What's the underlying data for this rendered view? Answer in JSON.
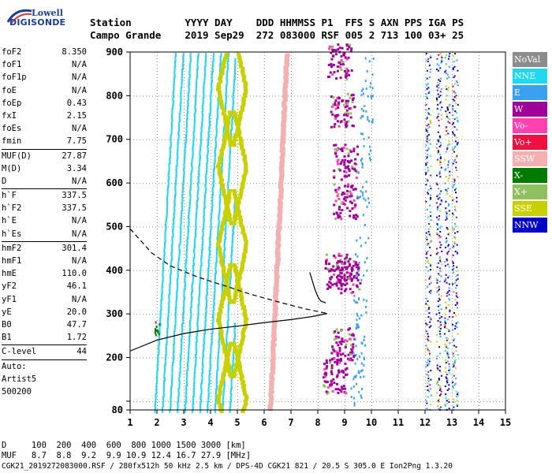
{
  "header": {
    "labels": "Station         YYYY DAY    DDD HHMMSS P1  FFS S AXN PPS IGA PS",
    "values": "Campo Grande    2019 Sep29  272 083000 RSF 005 2 713 100 03+ 25"
  },
  "logo": {
    "line1": "Lowell",
    "line2": "DIGISONDE"
  },
  "params": [
    {
      "name": "foF2",
      "value": "8.350"
    },
    {
      "name": "foF1",
      "value": "N/A"
    },
    {
      "name": "foF1p",
      "value": "N/A"
    },
    {
      "name": "foE",
      "value": "N/A"
    },
    {
      "name": "foEp",
      "value": "0.43"
    },
    {
      "name": "fxI",
      "value": "2.15"
    },
    {
      "name": "foEs",
      "value": "N/A"
    },
    {
      "name": "fmin",
      "value": "7.75"
    },
    {
      "name": "MUF(D)",
      "value": "27.87"
    },
    {
      "name": "M(D)",
      "value": "3.34"
    },
    {
      "name": "D",
      "value": "N/A"
    },
    {
      "name": "h`F",
      "value": "337.5"
    },
    {
      "name": "h`F2",
      "value": "337.5"
    },
    {
      "name": "h`E",
      "value": "N/A"
    },
    {
      "name": "h`Es",
      "value": "N/A"
    },
    {
      "name": "hmF2",
      "value": "301.4"
    },
    {
      "name": "hmF1",
      "value": "N/A"
    },
    {
      "name": "hmE",
      "value": "110.0"
    },
    {
      "name": "yF2",
      "value": "46.1"
    },
    {
      "name": "yF1",
      "value": "N/A"
    },
    {
      "name": "yE",
      "value": "20.0"
    },
    {
      "name": "B0",
      "value": "47.7"
    },
    {
      "name": "B1",
      "value": "1.72"
    },
    {
      "name": "C-level",
      "value": "44"
    }
  ],
  "auto": {
    "line1": "Auto:",
    "line2": "Artist5",
    "line3": "500200"
  },
  "legend": [
    {
      "label": "NoVal",
      "color": "#8c8c8c"
    },
    {
      "label": "NNE",
      "color": "#20d8f0"
    },
    {
      "label": "E",
      "color": "#3aa0f0"
    },
    {
      "label": "W",
      "color": "#a0009a"
    },
    {
      "label": "Vo-",
      "color": "#ff40b0"
    },
    {
      "label": "Vo+",
      "color": "#f01040"
    },
    {
      "label": "SSW",
      "color": "#f4b0b0"
    },
    {
      "label": "X-",
      "color": "#007a00"
    },
    {
      "label": "X+",
      "color": "#90c060"
    },
    {
      "label": "SSE",
      "color": "#c8d000"
    },
    {
      "label": "NNW",
      "color": "#0000c8"
    }
  ],
  "footer": {
    "d_row": "D     100  200  400  600  800 1000 1500 3000 [km]",
    "muf_row": "MUF   8.7  8.8  9.2  9.9 10.9 12.4 16.7 27.9 [MHz]",
    "info": "CGK21_2019272083000.RSF / 280fx512h 50 kHz 2.5 km / DPS-4D CGK21 821 / 20.5 S 305.0 E Ion2Png 1.3.20"
  },
  "chart_data": {
    "type": "scatter",
    "title": "",
    "xlabel": "",
    "ylabel": "",
    "xlim": [
      1,
      15
    ],
    "ylim": [
      80,
      900
    ],
    "x_ticks": [
      1,
      2,
      3,
      4,
      5,
      6,
      7,
      8,
      9,
      10,
      11,
      12,
      13,
      14,
      15
    ],
    "y_ticks": [
      80,
      100,
      200,
      300,
      400,
      500,
      600,
      700,
      800,
      900
    ],
    "grid": true,
    "profile_lower": [
      [
        1.0,
        215
      ],
      [
        2.0,
        240
      ],
      [
        3.0,
        255
      ],
      [
        4.0,
        265
      ],
      [
        5.0,
        272
      ],
      [
        6.0,
        280
      ],
      [
        7.0,
        287
      ],
      [
        7.8,
        294
      ],
      [
        8.35,
        301
      ]
    ],
    "profile_upper": [
      [
        1.0,
        495
      ],
      [
        1.8,
        440
      ],
      [
        2.5,
        410
      ],
      [
        3.5,
        385
      ],
      [
        4.5,
        365
      ],
      [
        5.5,
        345
      ],
      [
        6.5,
        328
      ],
      [
        7.5,
        312
      ],
      [
        8.35,
        301
      ]
    ],
    "trace_o": [
      [
        7.7,
        395
      ],
      [
        7.8,
        375
      ],
      [
        7.9,
        355
      ],
      [
        8.0,
        340
      ],
      [
        8.1,
        330
      ],
      [
        8.3,
        325
      ]
    ]
  }
}
